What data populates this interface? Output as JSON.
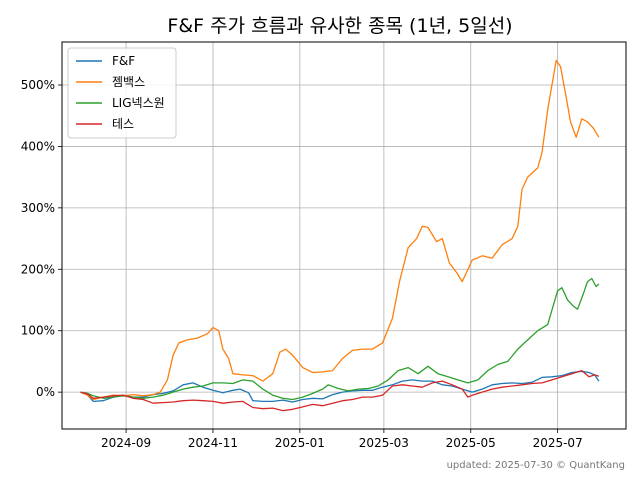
{
  "chart_data": {
    "type": "line",
    "title": "F&F 주가 흐름과 유사한 종목 (1년, 5일선)",
    "footer": "updated: 2025-07-30 © QuantKang",
    "grid": true,
    "legend_position": "top-left",
    "y_format": "percent",
    "ylim": [
      -60,
      570
    ],
    "y_ticks": [
      0,
      100,
      200,
      300,
      400,
      500
    ],
    "y_tick_labels": [
      "0%",
      "100%",
      "200%",
      "300%",
      "400%",
      "500%"
    ],
    "xlim": [
      "2024-07-18",
      "2025-08-18"
    ],
    "x_ticks": [
      "2024-09-01",
      "2024-11-01",
      "2025-01-01",
      "2025-03-01",
      "2025-05-01",
      "2025-07-01"
    ],
    "x_tick_labels": [
      "2024-09",
      "2024-11",
      "2025-01",
      "2025-03",
      "2025-05",
      "2025-07"
    ],
    "series": [
      {
        "name": "F&F",
        "color": "#1f77b4",
        "points": [
          [
            "2024-07-31",
            0
          ],
          [
            "2024-08-05",
            -5
          ],
          [
            "2024-08-09",
            -15
          ],
          [
            "2024-08-16",
            -14
          ],
          [
            "2024-08-23",
            -8
          ],
          [
            "2024-08-30",
            -5
          ],
          [
            "2024-09-06",
            -8
          ],
          [
            "2024-09-13",
            -8
          ],
          [
            "2024-09-20",
            -4
          ],
          [
            "2024-09-27",
            -2
          ],
          [
            "2024-10-04",
            2
          ],
          [
            "2024-10-11",
            12
          ],
          [
            "2024-10-18",
            15
          ],
          [
            "2024-10-25",
            8
          ],
          [
            "2024-11-01",
            3
          ],
          [
            "2024-11-08",
            -1
          ],
          [
            "2024-11-15",
            3
          ],
          [
            "2024-11-20",
            5
          ],
          [
            "2024-11-26",
            -1
          ],
          [
            "2024-11-29",
            -14
          ],
          [
            "2024-12-06",
            -15
          ],
          [
            "2024-12-13",
            -15
          ],
          [
            "2024-12-20",
            -13
          ],
          [
            "2024-12-27",
            -16
          ],
          [
            "2025-01-03",
            -12
          ],
          [
            "2025-01-10",
            -10
          ],
          [
            "2025-01-17",
            -11
          ],
          [
            "2025-01-24",
            -4
          ],
          [
            "2025-01-31",
            0
          ],
          [
            "2025-02-07",
            2
          ],
          [
            "2025-02-14",
            3
          ],
          [
            "2025-02-21",
            3
          ],
          [
            "2025-02-28",
            8
          ],
          [
            "2025-03-07",
            12
          ],
          [
            "2025-03-14",
            18
          ],
          [
            "2025-03-21",
            20
          ],
          [
            "2025-03-28",
            18
          ],
          [
            "2025-04-04",
            18
          ],
          [
            "2025-04-11",
            12
          ],
          [
            "2025-04-18",
            10
          ],
          [
            "2025-04-25",
            5
          ],
          [
            "2025-05-02",
            0
          ],
          [
            "2025-05-09",
            5
          ],
          [
            "2025-05-16",
            12
          ],
          [
            "2025-05-23",
            14
          ],
          [
            "2025-05-30",
            15
          ],
          [
            "2025-06-06",
            14
          ],
          [
            "2025-06-13",
            16
          ],
          [
            "2025-06-20",
            24
          ],
          [
            "2025-06-27",
            25
          ],
          [
            "2025-07-04",
            27
          ],
          [
            "2025-07-11",
            32
          ],
          [
            "2025-07-18",
            34
          ],
          [
            "2025-07-23",
            32
          ],
          [
            "2025-07-27",
            28
          ],
          [
            "2025-07-30",
            18
          ]
        ]
      },
      {
        "name": "젬백스",
        "color": "#ff7f0e",
        "points": [
          [
            "2024-07-31",
            0
          ],
          [
            "2024-08-05",
            -5
          ],
          [
            "2024-08-09",
            -12
          ],
          [
            "2024-08-16",
            -8
          ],
          [
            "2024-08-23",
            -5
          ],
          [
            "2024-08-30",
            -6
          ],
          [
            "2024-09-06",
            -4
          ],
          [
            "2024-09-13",
            -6
          ],
          [
            "2024-09-20",
            -4
          ],
          [
            "2024-09-25",
            0
          ],
          [
            "2024-09-30",
            20
          ],
          [
            "2024-10-04",
            60
          ],
          [
            "2024-10-08",
            80
          ],
          [
            "2024-10-14",
            85
          ],
          [
            "2024-10-21",
            88
          ],
          [
            "2024-10-28",
            95
          ],
          [
            "2024-11-01",
            105
          ],
          [
            "2024-11-05",
            100
          ],
          [
            "2024-11-08",
            70
          ],
          [
            "2024-11-12",
            55
          ],
          [
            "2024-11-15",
            30
          ],
          [
            "2024-11-22",
            28
          ],
          [
            "2024-11-29",
            27
          ],
          [
            "2024-12-06",
            18
          ],
          [
            "2024-12-13",
            30
          ],
          [
            "2024-12-18",
            65
          ],
          [
            "2024-12-22",
            70
          ],
          [
            "2024-12-27",
            60
          ],
          [
            "2025-01-03",
            40
          ],
          [
            "2025-01-10",
            32
          ],
          [
            "2025-01-17",
            33
          ],
          [
            "2025-01-24",
            35
          ],
          [
            "2025-01-31",
            55
          ],
          [
            "2025-02-07",
            68
          ],
          [
            "2025-02-14",
            70
          ],
          [
            "2025-02-21",
            70
          ],
          [
            "2025-02-28",
            80
          ],
          [
            "2025-03-07",
            120
          ],
          [
            "2025-03-12",
            180
          ],
          [
            "2025-03-18",
            235
          ],
          [
            "2025-03-24",
            250
          ],
          [
            "2025-03-28",
            270
          ],
          [
            "2025-04-01",
            268
          ],
          [
            "2025-04-07",
            245
          ],
          [
            "2025-04-11",
            250
          ],
          [
            "2025-04-16",
            210
          ],
          [
            "2025-04-21",
            195
          ],
          [
            "2025-04-25",
            180
          ],
          [
            "2025-05-02",
            215
          ],
          [
            "2025-05-09",
            222
          ],
          [
            "2025-05-16",
            218
          ],
          [
            "2025-05-23",
            240
          ],
          [
            "2025-05-30",
            250
          ],
          [
            "2025-06-03",
            270
          ],
          [
            "2025-06-06",
            330
          ],
          [
            "2025-06-10",
            350
          ],
          [
            "2025-06-17",
            365
          ],
          [
            "2025-06-20",
            390
          ],
          [
            "2025-06-24",
            460
          ],
          [
            "2025-06-30",
            540
          ],
          [
            "2025-07-03",
            530
          ],
          [
            "2025-07-07",
            480
          ],
          [
            "2025-07-10",
            440
          ],
          [
            "2025-07-14",
            415
          ],
          [
            "2025-07-18",
            445
          ],
          [
            "2025-07-22",
            440
          ],
          [
            "2025-07-26",
            430
          ],
          [
            "2025-07-30",
            415
          ]
        ]
      },
      {
        "name": "LIG넥스원",
        "color": "#2ca02c",
        "points": [
          [
            "2024-07-31",
            0
          ],
          [
            "2024-08-05",
            -2
          ],
          [
            "2024-08-09",
            -6
          ],
          [
            "2024-08-16",
            -10
          ],
          [
            "2024-08-23",
            -8
          ],
          [
            "2024-08-30",
            -6
          ],
          [
            "2024-09-06",
            -8
          ],
          [
            "2024-09-13",
            -10
          ],
          [
            "2024-09-20",
            -8
          ],
          [
            "2024-09-27",
            -5
          ],
          [
            "2024-10-04",
            0
          ],
          [
            "2024-10-11",
            5
          ],
          [
            "2024-10-18",
            8
          ],
          [
            "2024-10-25",
            10
          ],
          [
            "2024-11-01",
            15
          ],
          [
            "2024-11-08",
            15
          ],
          [
            "2024-11-15",
            14
          ],
          [
            "2024-11-22",
            20
          ],
          [
            "2024-11-29",
            18
          ],
          [
            "2024-12-06",
            5
          ],
          [
            "2024-12-13",
            -5
          ],
          [
            "2024-12-20",
            -10
          ],
          [
            "2024-12-27",
            -12
          ],
          [
            "2025-01-03",
            -8
          ],
          [
            "2025-01-10",
            -2
          ],
          [
            "2025-01-17",
            5
          ],
          [
            "2025-01-21",
            12
          ],
          [
            "2025-01-28",
            6
          ],
          [
            "2025-02-04",
            2
          ],
          [
            "2025-02-11",
            5
          ],
          [
            "2025-02-18",
            6
          ],
          [
            "2025-02-25",
            10
          ],
          [
            "2025-03-04",
            20
          ],
          [
            "2025-03-11",
            35
          ],
          [
            "2025-03-18",
            40
          ],
          [
            "2025-03-25",
            30
          ],
          [
            "2025-04-01",
            42
          ],
          [
            "2025-04-08",
            30
          ],
          [
            "2025-04-15",
            25
          ],
          [
            "2025-04-22",
            20
          ],
          [
            "2025-04-29",
            15
          ],
          [
            "2025-05-06",
            20
          ],
          [
            "2025-05-13",
            35
          ],
          [
            "2025-05-20",
            45
          ],
          [
            "2025-05-27",
            50
          ],
          [
            "2025-06-03",
            70
          ],
          [
            "2025-06-10",
            85
          ],
          [
            "2025-06-17",
            100
          ],
          [
            "2025-06-24",
            110
          ],
          [
            "2025-07-01",
            165
          ],
          [
            "2025-07-04",
            170
          ],
          [
            "2025-07-08",
            150
          ],
          [
            "2025-07-12",
            140
          ],
          [
            "2025-07-15",
            135
          ],
          [
            "2025-07-19",
            160
          ],
          [
            "2025-07-22",
            180
          ],
          [
            "2025-07-25",
            185
          ],
          [
            "2025-07-28",
            172
          ],
          [
            "2025-07-30",
            176
          ]
        ]
      },
      {
        "name": "테스",
        "color": "#d62728",
        "points": [
          [
            "2024-07-31",
            0
          ],
          [
            "2024-08-05",
            -3
          ],
          [
            "2024-08-09",
            -10
          ],
          [
            "2024-08-16",
            -8
          ],
          [
            "2024-08-23",
            -6
          ],
          [
            "2024-08-30",
            -5
          ],
          [
            "2024-09-06",
            -10
          ],
          [
            "2024-09-13",
            -12
          ],
          [
            "2024-09-20",
            -18
          ],
          [
            "2024-09-27",
            -17
          ],
          [
            "2024-10-04",
            -16
          ],
          [
            "2024-10-11",
            -14
          ],
          [
            "2024-10-18",
            -13
          ],
          [
            "2024-10-25",
            -14
          ],
          [
            "2024-11-01",
            -15
          ],
          [
            "2024-11-08",
            -18
          ],
          [
            "2024-11-15",
            -16
          ],
          [
            "2024-11-22",
            -15
          ],
          [
            "2024-11-29",
            -25
          ],
          [
            "2024-12-06",
            -27
          ],
          [
            "2024-12-13",
            -26
          ],
          [
            "2024-12-20",
            -30
          ],
          [
            "2024-12-27",
            -28
          ],
          [
            "2025-01-03",
            -24
          ],
          [
            "2025-01-10",
            -20
          ],
          [
            "2025-01-17",
            -22
          ],
          [
            "2025-01-24",
            -18
          ],
          [
            "2025-01-31",
            -14
          ],
          [
            "2025-02-07",
            -12
          ],
          [
            "2025-02-14",
            -8
          ],
          [
            "2025-02-21",
            -8
          ],
          [
            "2025-02-28",
            -5
          ],
          [
            "2025-03-07",
            10
          ],
          [
            "2025-03-14",
            12
          ],
          [
            "2025-03-21",
            10
          ],
          [
            "2025-03-28",
            8
          ],
          [
            "2025-04-04",
            15
          ],
          [
            "2025-04-11",
            18
          ],
          [
            "2025-04-18",
            12
          ],
          [
            "2025-04-25",
            5
          ],
          [
            "2025-04-29",
            -8
          ],
          [
            "2025-05-02",
            -5
          ],
          [
            "2025-05-09",
            0
          ],
          [
            "2025-05-16",
            5
          ],
          [
            "2025-05-23",
            8
          ],
          [
            "2025-05-30",
            10
          ],
          [
            "2025-06-06",
            12
          ],
          [
            "2025-06-13",
            14
          ],
          [
            "2025-06-20",
            15
          ],
          [
            "2025-06-27",
            20
          ],
          [
            "2025-07-04",
            25
          ],
          [
            "2025-07-11",
            30
          ],
          [
            "2025-07-18",
            35
          ],
          [
            "2025-07-23",
            25
          ],
          [
            "2025-07-27",
            28
          ],
          [
            "2025-07-30",
            26
          ]
        ]
      }
    ]
  }
}
